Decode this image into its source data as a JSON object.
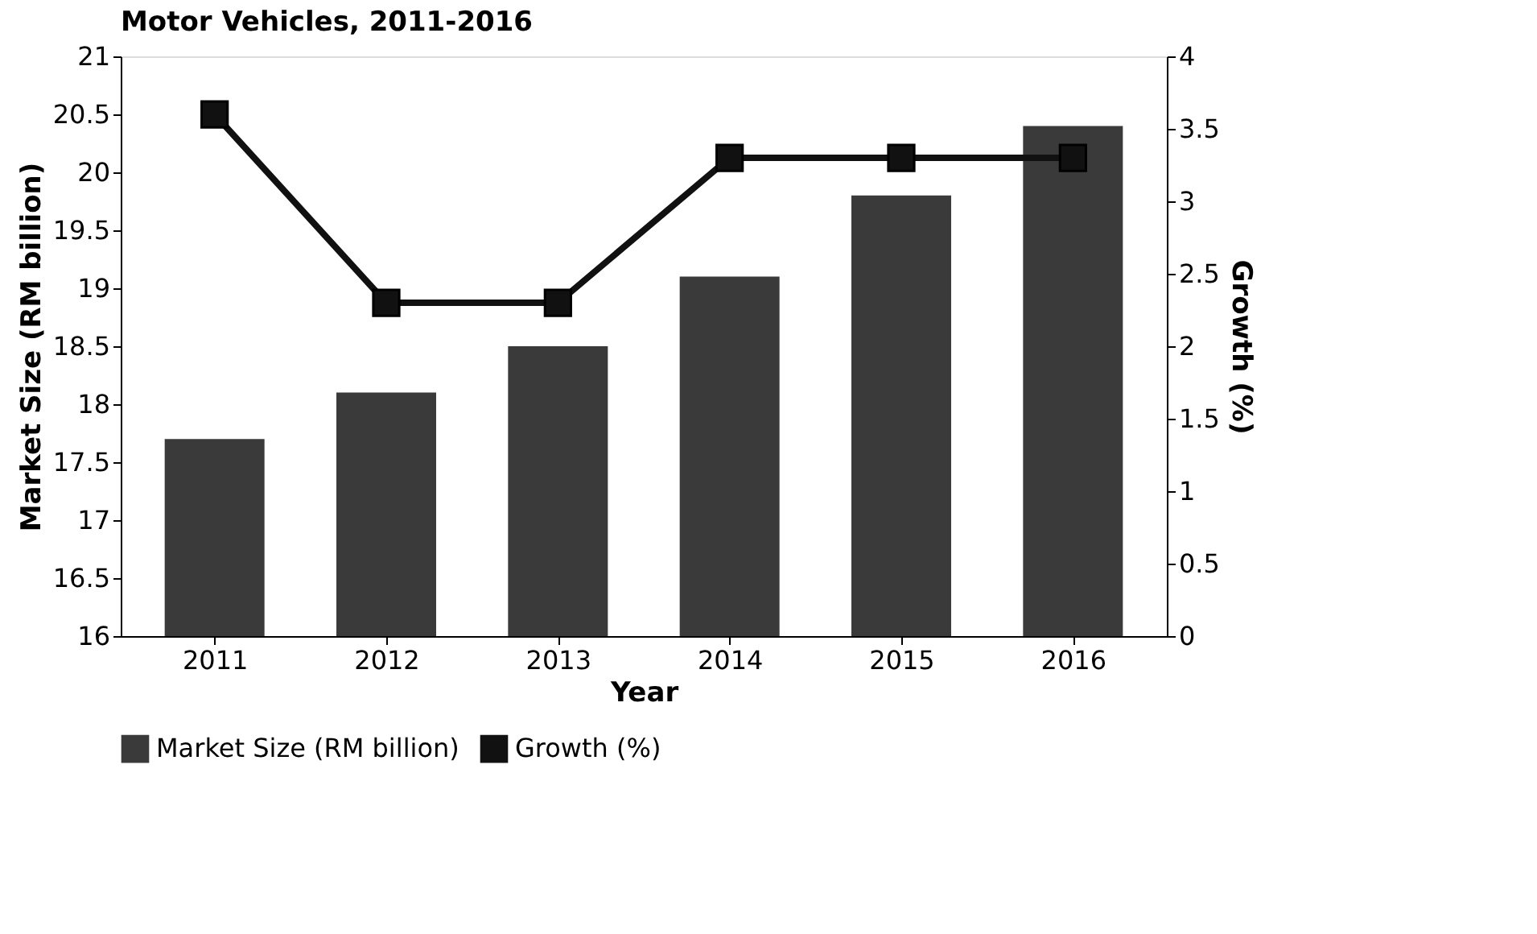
{
  "chart_data": {
    "type": "bar",
    "title": "Motor Vehicles, 2011-2016",
    "xlabel": "Year",
    "ylabel": "Market Size (RM billion)",
    "y2label": "Growth (%)",
    "categories": [
      "2011",
      "2012",
      "2013",
      "2014",
      "2015",
      "2016"
    ],
    "series": [
      {
        "name": "Market Size (RM billion)",
        "color": "#3a3a3a",
        "values": [
          17.7,
          18.1,
          18.5,
          19.1,
          19.8,
          20.4
        ]
      },
      {
        "name": "Growth (%)",
        "type": "line",
        "axis": "y2",
        "color": "#111111",
        "marker": "square",
        "values": [
          3.6,
          2.3,
          2.3,
          3.3,
          3.3,
          3.3
        ]
      }
    ],
    "ylim": [
      16,
      21
    ],
    "yticks": [
      16,
      16.5,
      17,
      17.5,
      18,
      18.5,
      19,
      19.5,
      20,
      20.5,
      21
    ],
    "y2lim": [
      0,
      4
    ],
    "y2ticks": [
      0,
      0.5,
      1,
      1.5,
      2,
      2.5,
      3,
      3.5,
      4
    ],
    "grid": false,
    "legend": "bottom"
  }
}
